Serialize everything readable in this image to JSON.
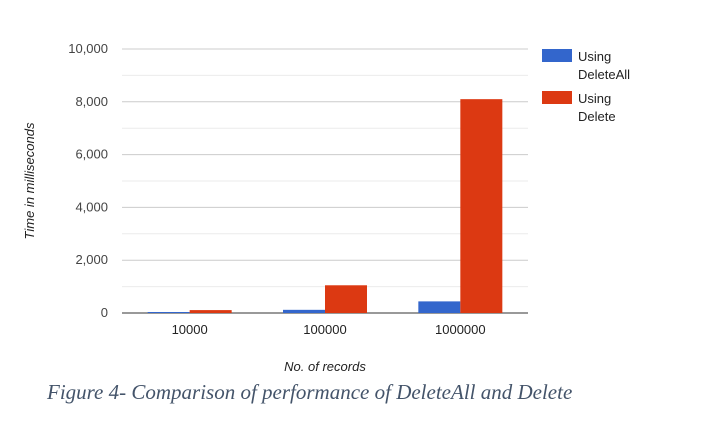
{
  "chart_data": {
    "type": "bar",
    "categories": [
      "10000",
      "100000",
      "1000000"
    ],
    "series": [
      {
        "name": "Using DeleteAll",
        "legend_lines": [
          "Using",
          "DeleteAll"
        ],
        "values": [
          15,
          120,
          440
        ],
        "color": "#3366cc"
      },
      {
        "name": "Using Delete",
        "legend_lines": [
          "Using",
          "Delete"
        ],
        "values": [
          110,
          1050,
          8100
        ],
        "color": "#dc3912"
      }
    ],
    "title": "",
    "xlabel": "No. of records",
    "ylabel": "Time in milliseconds",
    "ylim": [
      0,
      10000
    ],
    "yticks": [
      0,
      2000,
      4000,
      6000,
      8000,
      10000
    ],
    "ytick_labels": [
      "0",
      "2,000",
      "4,000",
      "6,000",
      "8,000",
      "10,000"
    ],
    "minor_grid": true,
    "legend_position": "right"
  },
  "caption": "Figure 4- Comparison of performance of DeleteAll and Delete"
}
